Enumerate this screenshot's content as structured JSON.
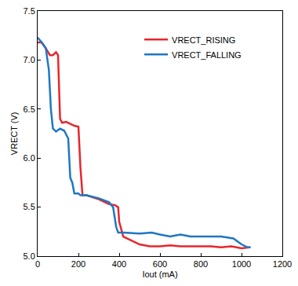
{
  "chart_data": {
    "type": "line",
    "x_label": "Iout (mA)",
    "y_label": "VRECT (V)",
    "xlim": [
      0,
      1200
    ],
    "xticks": [
      0,
      200,
      400,
      600,
      800,
      1000,
      1200
    ],
    "ylim": [
      5,
      7.5
    ],
    "yticks": [
      {
        "value": 5,
        "label": "5.0"
      },
      5.5,
      {
        "value": 6,
        "label": "6.0"
      },
      6.5,
      {
        "value": 7,
        "label": "7.0"
      },
      7.5
    ],
    "grid": false,
    "legend": "upper right",
    "series": [
      {
        "name": "VRECT_RISING",
        "color": "#e8262d",
        "x": [
          0,
          20,
          40,
          60,
          75,
          90,
          100,
          110,
          120,
          140,
          160,
          180,
          200,
          210,
          220,
          240,
          300,
          350,
          380,
          395,
          400,
          420,
          450,
          500,
          550,
          600,
          650,
          700,
          750,
          800,
          850,
          900,
          950,
          1000,
          1040
        ],
        "values": [
          7.18,
          7.18,
          7.12,
          7.05,
          7.05,
          7.08,
          7.05,
          6.4,
          6.36,
          6.37,
          6.35,
          6.33,
          6.32,
          5.9,
          5.62,
          5.62,
          5.58,
          5.53,
          5.52,
          5.5,
          5.35,
          5.2,
          5.17,
          5.12,
          5.1,
          5.1,
          5.11,
          5.1,
          5.1,
          5.1,
          5.1,
          5.09,
          5.1,
          5.08,
          5.09
        ]
      },
      {
        "name": "VRECT_FALLING",
        "color": "#1f77c4",
        "x": [
          0,
          20,
          40,
          55,
          65,
          75,
          90,
          110,
          130,
          150,
          160,
          170,
          180,
          200,
          210,
          240,
          300,
          350,
          370,
          385,
          395,
          420,
          500,
          560,
          600,
          650,
          700,
          750,
          800,
          900,
          960,
          1000,
          1030,
          1045
        ],
        "values": [
          7.23,
          7.18,
          7.12,
          6.9,
          6.5,
          6.3,
          6.27,
          6.3,
          6.28,
          6.2,
          5.8,
          5.75,
          5.64,
          5.64,
          5.62,
          5.62,
          5.59,
          5.55,
          5.5,
          5.3,
          5.24,
          5.24,
          5.23,
          5.24,
          5.22,
          5.2,
          5.22,
          5.2,
          5.2,
          5.2,
          5.18,
          5.12,
          5.09,
          5.09
        ]
      }
    ]
  }
}
